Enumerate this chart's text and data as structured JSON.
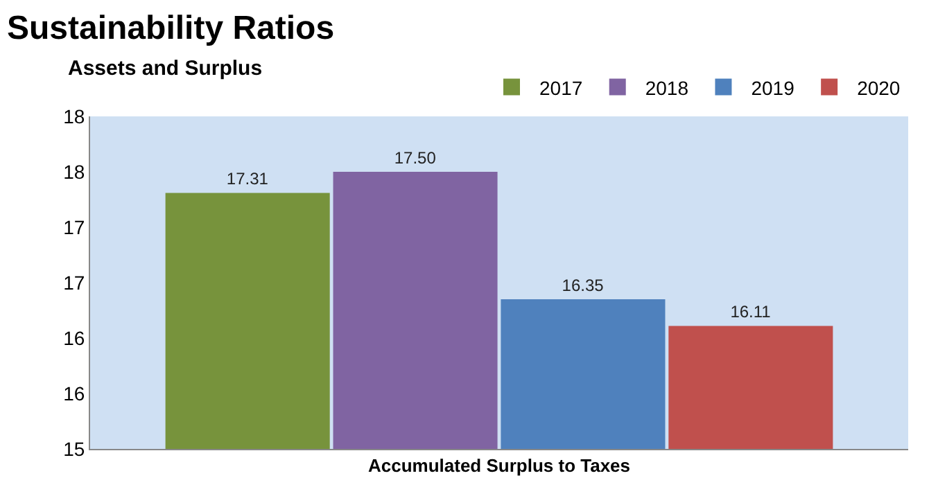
{
  "chart_data": {
    "type": "bar",
    "title": "Sustainability Ratios",
    "subtitle": "Assets and Surplus",
    "categories": [
      "Accumulated Surplus to Taxes"
    ],
    "series": [
      {
        "name": "2017",
        "color": "#77933c",
        "values": [
          17.31
        ],
        "value_labels": [
          "17.31"
        ]
      },
      {
        "name": "2018",
        "color": "#8064a2",
        "values": [
          17.5
        ],
        "value_labels": [
          "17.50"
        ]
      },
      {
        "name": "2019",
        "color": "#4f81bd",
        "values": [
          16.35
        ],
        "value_labels": [
          "16.35"
        ]
      },
      {
        "name": "2020",
        "color": "#c0504d",
        "values": [
          16.11
        ],
        "value_labels": [
          "16.11"
        ]
      }
    ],
    "ylim": [
      15,
      18
    ],
    "yticks": [
      15,
      {
        "value": 15.5,
        "label": "16"
      },
      16,
      {
        "value": 16.5,
        "label": "17"
      },
      17,
      {
        "value": 17.5,
        "label": "18"
      },
      18
    ],
    "grid": false,
    "legend": "top right"
  }
}
